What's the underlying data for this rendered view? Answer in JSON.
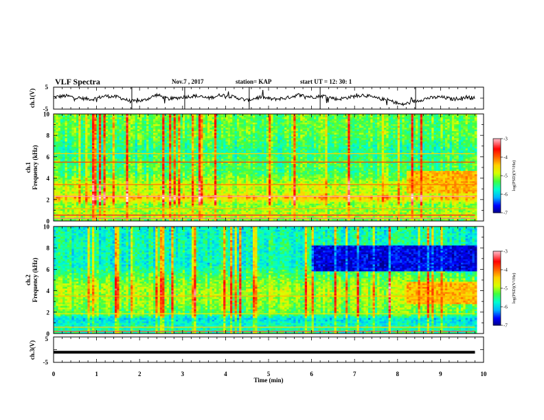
{
  "header": {
    "title": "VLF Spectra",
    "date": "Nov.7 , 2017",
    "station": "station= KAP",
    "start_ut": "start UT = 12: 30: 1"
  },
  "chart_data": [
    {
      "type": "line",
      "panel": "ch1-waveform",
      "ylabel": "ch.1(V)",
      "ylim": [
        -5,
        5
      ],
      "y_ticks": [
        "5",
        "-5"
      ],
      "xlim": [
        0,
        10
      ],
      "series": [
        {
          "x": [
            0,
            0.3,
            0.6,
            0.9,
            1.2,
            1.5,
            1.8,
            2.1,
            2.4,
            2.7,
            3.0,
            3.3,
            3.6,
            3.9,
            4.2,
            4.5,
            4.8,
            5.1,
            5.4,
            5.7,
            6.0,
            6.3,
            6.6,
            6.9,
            7.2,
            7.5,
            7.8,
            8.1,
            8.4,
            8.7,
            9.0,
            9.3,
            9.6,
            9.8
          ],
          "values": [
            0.5,
            1.0,
            0.0,
            -0.5,
            1.0,
            0.5,
            -1.5,
            -1.0,
            1.5,
            -0.5,
            0.5,
            1.0,
            0.0,
            1.5,
            0.5,
            -1.0,
            0.5,
            -0.5,
            0.0,
            1.5,
            0.5,
            1.0,
            -0.5,
            0.5,
            1.5,
            0.0,
            -1.0,
            -3.0,
            -1.5,
            0.0,
            0.5,
            -0.5,
            0.5,
            0.0
          ]
        }
      ]
    },
    {
      "type": "heatmap",
      "panel": "ch1-spectrogram",
      "ylabel_top": "ch.1",
      "ylabel": "Frequency (kHz)",
      "ylim": [
        0,
        10
      ],
      "y_ticks": [
        "0",
        "2",
        "4",
        "6",
        "8",
        "10"
      ],
      "xlim": [
        0,
        10
      ],
      "zlim": [
        -7,
        -3
      ],
      "colorbar_label": "log(PSD)(V²/Hz)",
      "colorbar_ticks": [
        "-3",
        "-4",
        "-5",
        "-6",
        "-7"
      ],
      "bands": [
        {
          "f": 0.0,
          "v": 0.4
        },
        {
          "f": 0.5,
          "v": 0.5
        },
        {
          "f": 1.0,
          "v": 0.45
        },
        {
          "f": 1.6,
          "v": 0.45
        },
        {
          "f": 2.2,
          "v": 0.62
        },
        {
          "f": 2.6,
          "v": 0.48
        },
        {
          "f": 3.4,
          "v": 0.5
        },
        {
          "f": 4.5,
          "v": 0.38
        },
        {
          "f": 5.5,
          "v": 0.4
        },
        {
          "f": 6.5,
          "v": 0.34
        },
        {
          "f": 8.0,
          "v": 0.4
        },
        {
          "f": 10.0,
          "v": 0.42
        }
      ],
      "lines": [
        {
          "f": 0.25,
          "v": 0.88
        },
        {
          "f": 0.55,
          "v": 0.82
        },
        {
          "f": 1.15,
          "v": 0.62
        },
        {
          "f": 2.3,
          "v": 0.9
        },
        {
          "f": 3.4,
          "v": 0.68
        },
        {
          "f": 5.5,
          "v": 0.74
        },
        {
          "f": 6.3,
          "v": 0.6
        }
      ],
      "patches": [
        {
          "x0": 8.2,
          "x1": 9.8,
          "f0": 2.6,
          "f1": 4.6,
          "v": 0.62
        }
      ]
    },
    {
      "type": "heatmap",
      "panel": "ch2-spectrogram",
      "ylabel_top": "ch.2",
      "ylabel": "Frequency (kHz)",
      "ylim": [
        0,
        10
      ],
      "y_ticks": [
        "0",
        "2",
        "4",
        "6",
        "8",
        "10"
      ],
      "xlim": [
        0,
        10
      ],
      "zlim": [
        -7,
        -3
      ],
      "colorbar_label": "log(PSD)(V²/Hz)",
      "colorbar_ticks": [
        "-3",
        "-4",
        "-5",
        "-6",
        "-7"
      ],
      "bands": [
        {
          "f": 0.0,
          "v": 0.35
        },
        {
          "f": 0.8,
          "v": 0.3
        },
        {
          "f": 1.4,
          "v": 0.25
        },
        {
          "f": 1.8,
          "v": 0.4
        },
        {
          "f": 2.8,
          "v": 0.45
        },
        {
          "f": 4.0,
          "v": 0.48
        },
        {
          "f": 5.0,
          "v": 0.42
        },
        {
          "f": 6.5,
          "v": 0.3
        },
        {
          "f": 8.0,
          "v": 0.32
        },
        {
          "f": 10.0,
          "v": 0.3
        }
      ],
      "lines": [
        {
          "f": 0.2,
          "v": 0.85
        },
        {
          "f": 0.6,
          "v": 0.6
        },
        {
          "f": 1.85,
          "v": 0.55
        },
        {
          "f": 3.5,
          "v": 0.62
        }
      ],
      "patches": [
        {
          "x0": 8.2,
          "x1": 9.8,
          "f0": 2.8,
          "f1": 4.8,
          "v": 0.62
        },
        {
          "x0": 6.0,
          "x1": 9.8,
          "f0": 5.8,
          "f1": 8.2,
          "v": 0.08
        }
      ]
    },
    {
      "type": "line",
      "panel": "ch3-waveform",
      "ylabel": "ch.3(V)",
      "ylim": [
        -5,
        5
      ],
      "y_ticks": [
        "5",
        "-5"
      ],
      "xlim": [
        0,
        10
      ],
      "xlabel": "Time (min)",
      "x_ticks": [
        "0",
        "1",
        "2",
        "3",
        "4",
        "5",
        "6",
        "7",
        "8",
        "9",
        "10"
      ],
      "series": [
        {
          "x": [
            0,
            9.8
          ],
          "values": [
            -1,
            -1
          ]
        }
      ]
    }
  ],
  "colors": {
    "trace": "#000000",
    "colormap": [
      "#00007a",
      "#0000ff",
      "#00b4ff",
      "#00ffd0",
      "#40ff40",
      "#d8ff00",
      "#ffd000",
      "#ff6000",
      "#ff0000",
      "#ff9aa6",
      "#ffffff"
    ]
  }
}
